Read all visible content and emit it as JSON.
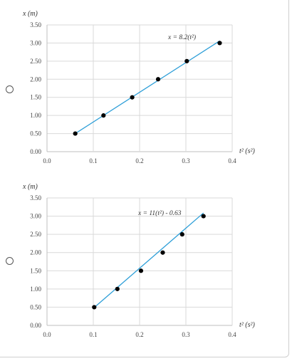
{
  "options": [
    {
      "label_x": "x (m)",
      "label_t": "t² (s²)",
      "equation": "x = 8.2(t²)",
      "chart_data": {
        "type": "scatter",
        "title": "",
        "xlabel": "t² (s²)",
        "ylabel": "x (m)",
        "xlim": [
          0,
          0.4
        ],
        "ylim": [
          0,
          3.5
        ],
        "x_ticks": [
          "0.0",
          "0.1",
          "0.2",
          "0.3",
          "0.4"
        ],
        "y_ticks": [
          "0.00",
          "0.50",
          "1.00",
          "1.50",
          "2.00",
          "2.50",
          "3.00",
          "3.50"
        ],
        "grid": true,
        "series": [
          {
            "x": [
              0.061,
              0.122,
              0.184,
              0.24,
              0.302,
              0.373
            ],
            "y": [
              0.5,
              1.0,
              1.5,
              2.0,
              2.5,
              3.0
            ]
          }
        ],
        "trendline": {
          "slope": 8.2,
          "intercept": 0,
          "x_range": [
            0.061,
            0.373
          ]
        },
        "trendline_label": "x = 8.2(t²)",
        "colors": {
          "trendline": "#2e9fd8",
          "points": "#000000"
        }
      }
    },
    {
      "label_x": "x (m)",
      "label_t": "t² (s²)",
      "equation": "x = 11(t²) - 0.63",
      "chart_data": {
        "type": "scatter",
        "title": "",
        "xlabel": "t² (s²)",
        "ylabel": "x (m)",
        "xlim": [
          0,
          0.4
        ],
        "ylim": [
          0,
          3.5
        ],
        "x_ticks": [
          "0.0",
          "0.1",
          "0.2",
          "0.3",
          "0.4"
        ],
        "y_ticks": [
          "0.00",
          "0.50",
          "1.00",
          "1.50",
          "2.00",
          "2.50",
          "3.00",
          "3.50"
        ],
        "grid": true,
        "series": [
          {
            "x": [
              0.102,
              0.152,
              0.203,
              0.25,
              0.292,
              0.338
            ],
            "y": [
              0.5,
              1.0,
              1.5,
              2.0,
              2.5,
              3.0
            ]
          }
        ],
        "trendline": {
          "slope": 11,
          "intercept": -0.63,
          "x_range": [
            0.102,
            0.338
          ]
        },
        "trendline_label": "x = 11(t²) - 0.63",
        "colors": {
          "trendline": "#2e9fd8",
          "points": "#000000"
        }
      }
    }
  ]
}
